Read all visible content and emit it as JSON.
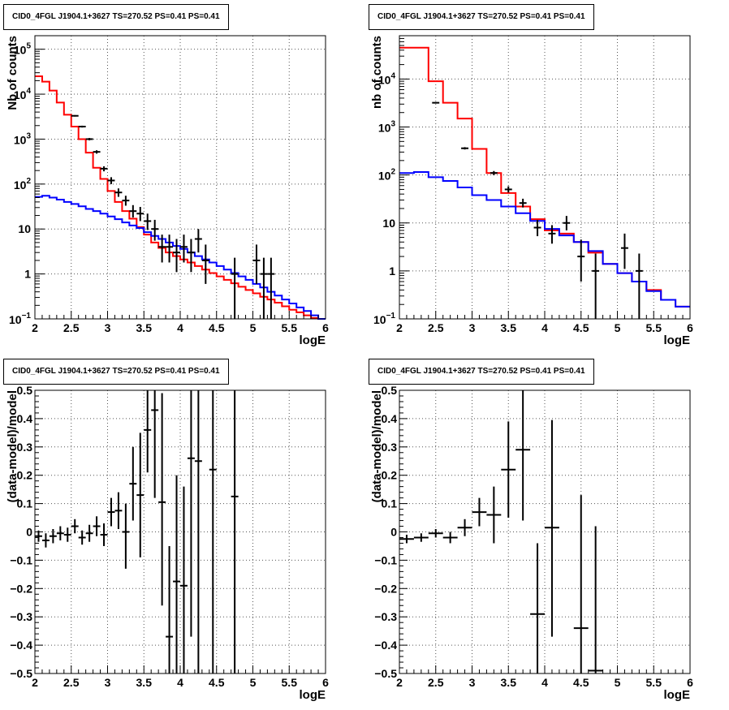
{
  "chart_data": [
    {
      "type": "line",
      "title": "CID0_4FGL J1904.1+3627 TS=270.52 PS=0.41 PS=0.41",
      "xlabel": "logE",
      "ylabel": "Nb of counts",
      "log_y": true,
      "xlim": [
        2,
        6
      ],
      "ylim": [
        0.1,
        200000
      ],
      "grid": true,
      "x_ticks": [
        "2",
        "2.5",
        "3",
        "3.5",
        "4",
        "4.5",
        "5",
        "5.5",
        "6"
      ],
      "y_ticks": [
        {
          "v": 0.1,
          "b": "10",
          "e": "−1"
        },
        {
          "v": 1,
          "b": "1",
          "e": ""
        },
        {
          "v": 10,
          "b": "10",
          "e": ""
        },
        {
          "v": 100,
          "b": "10",
          "e": "2"
        },
        {
          "v": 1000,
          "b": "10",
          "e": "3"
        },
        {
          "v": 10000,
          "b": "10",
          "e": "4"
        },
        {
          "v": 100000,
          "b": "10",
          "e": "5"
        }
      ],
      "bin_edges": [
        2.0,
        2.1,
        2.2,
        2.3,
        2.4,
        2.5,
        2.6,
        2.7,
        2.8,
        2.9,
        3.0,
        3.1,
        3.2,
        3.3,
        3.4,
        3.5,
        3.6,
        3.7,
        3.8,
        3.9,
        4.0,
        4.1,
        4.2,
        4.3,
        4.4,
        4.5,
        4.6,
        4.7,
        4.8,
        4.9,
        5.0,
        5.1,
        5.2,
        5.3,
        5.4,
        5.5,
        5.6,
        5.7,
        5.8,
        5.9,
        6.0
      ],
      "series": [
        {
          "name": "",
          "kind": "step",
          "color": "#ff0000",
          "values": [
            25000,
            19000,
            12000,
            6500,
            3500,
            1900,
            1000,
            500,
            230,
            130,
            70,
            40,
            25,
            17,
            11,
            7.5,
            5,
            3.8,
            3,
            2.5,
            2.1,
            1.8,
            1.5,
            1.25,
            1.05,
            0.88,
            0.74,
            0.62,
            0.52,
            0.44,
            0.37,
            0.31,
            0.27,
            0.23,
            0.19,
            0.16,
            0.14,
            0.12,
            0.105,
            0.09
          ]
        },
        {
          "name": "",
          "kind": "step",
          "color": "#0000ff",
          "values": [
            52,
            55,
            50,
            45,
            40,
            36,
            32,
            28,
            25,
            22,
            19,
            16.5,
            14,
            12,
            10.5,
            8.5,
            7,
            6,
            5,
            4.2,
            3.6,
            3.0,
            2.5,
            2.1,
            1.8,
            1.5,
            1.25,
            1.05,
            0.88,
            0.74,
            0.6,
            0.5,
            0.4,
            0.33,
            0.27,
            0.22,
            0.18,
            0.15,
            0.12,
            0.1
          ]
        },
        {
          "name": "",
          "kind": "errorbar",
          "color": "#000000",
          "points": [
            {
              "x": 2.55,
              "y": 3300,
              "lo": 3180,
              "hi": 3420
            },
            {
              "x": 2.65,
              "y": 1900,
              "lo": 1810,
              "hi": 1990
            },
            {
              "x": 2.75,
              "y": 1000,
              "lo": 940,
              "hi": 1060
            },
            {
              "x": 2.85,
              "y": 520,
              "lo": 475,
              "hi": 565
            },
            {
              "x": 2.95,
              "y": 220,
              "lo": 192,
              "hi": 248
            },
            {
              "x": 3.05,
              "y": 120,
              "lo": 100,
              "hi": 142
            },
            {
              "x": 3.15,
              "y": 65,
              "lo": 52,
              "hi": 80
            },
            {
              "x": 3.25,
              "y": 43,
              "lo": 33,
              "hi": 55
            },
            {
              "x": 3.35,
              "y": 25,
              "lo": 18,
              "hi": 34
            },
            {
              "x": 3.45,
              "y": 22,
              "lo": 15,
              "hi": 31
            },
            {
              "x": 3.55,
              "y": 15,
              "lo": 9.5,
              "hi": 22
            },
            {
              "x": 3.65,
              "y": 10,
              "lo": 5.5,
              "hi": 16
            },
            {
              "x": 3.75,
              "y": 4,
              "lo": 1.8,
              "hi": 7.5
            },
            {
              "x": 3.85,
              "y": 4,
              "lo": 1.8,
              "hi": 7.5
            },
            {
              "x": 3.95,
              "y": 3,
              "lo": 1.1,
              "hi": 6
            },
            {
              "x": 4.05,
              "y": 4,
              "lo": 1.8,
              "hi": 7.5
            },
            {
              "x": 4.15,
              "y": 3,
              "lo": 1.1,
              "hi": 6
            },
            {
              "x": 4.25,
              "y": 6,
              "lo": 3,
              "hi": 10
            },
            {
              "x": 4.35,
              "y": 2,
              "lo": 0.6,
              "hi": 4.5
            },
            {
              "x": 4.75,
              "y": 1,
              "lo": 0.1,
              "hi": 2.3
            },
            {
              "x": 5.05,
              "y": 2,
              "lo": 0.6,
              "hi": 4.5
            },
            {
              "x": 5.15,
              "y": 1,
              "lo": 0.1,
              "hi": 2.3
            },
            {
              "x": 5.25,
              "y": 1,
              "lo": 0.1,
              "hi": 2.3
            }
          ]
        }
      ]
    },
    {
      "type": "line",
      "title": "CID0_4FGL J1904.1+3627 TS=270.52 PS=0.41 PS=0.41",
      "xlabel": "logE",
      "ylabel": "nb of counts",
      "log_y": true,
      "xlim": [
        2,
        6
      ],
      "ylim": [
        0.1,
        80000
      ],
      "grid": true,
      "x_ticks": [
        "2",
        "2.5",
        "3",
        "3.5",
        "4",
        "4.5",
        "5",
        "5.5",
        "6"
      ],
      "y_ticks": [
        {
          "v": 0.1,
          "b": "10",
          "e": "−1"
        },
        {
          "v": 1,
          "b": "1",
          "e": ""
        },
        {
          "v": 10,
          "b": "10",
          "e": ""
        },
        {
          "v": 100,
          "b": "10",
          "e": "2"
        },
        {
          "v": 1000,
          "b": "10",
          "e": "3"
        },
        {
          "v": 10000,
          "b": "10",
          "e": "4"
        }
      ],
      "bin_edges": [
        2.0,
        2.2,
        2.4,
        2.6,
        2.8,
        3.0,
        3.2,
        3.4,
        3.6,
        3.8,
        4.0,
        4.2,
        4.4,
        4.6,
        4.8,
        5.0,
        5.2,
        5.4,
        5.6,
        5.8,
        6.0
      ],
      "series": [
        {
          "name": "",
          "kind": "step",
          "color": "#ff0000",
          "values": [
            45000,
            45000,
            9000,
            3200,
            1500,
            350,
            110,
            42,
            22,
            12,
            7,
            6,
            4,
            2.4,
            1.4,
            0.9,
            0.6,
            0.4,
            0.25,
            0.18
          ]
        },
        {
          "name": "",
          "kind": "step",
          "color": "#0000ff",
          "values": [
            110,
            115,
            90,
            75,
            55,
            38,
            30,
            22,
            16,
            11,
            7.5,
            5.5,
            4,
            2.6,
            1.4,
            0.9,
            0.6,
            0.38,
            0.25,
            0.18
          ]
        },
        {
          "name": "",
          "kind": "errorbar",
          "color": "#000000",
          "points": [
            {
              "x": 2.5,
              "y": 3200,
              "lo": 3140,
              "hi": 3260
            },
            {
              "x": 2.9,
              "y": 360,
              "lo": 340,
              "hi": 380
            },
            {
              "x": 3.3,
              "y": 110,
              "lo": 99,
              "hi": 121
            },
            {
              "x": 3.5,
              "y": 50,
              "lo": 43,
              "hi": 58
            },
            {
              "x": 3.7,
              "y": 26,
              "lo": 21,
              "hi": 32
            },
            {
              "x": 3.9,
              "y": 8,
              "lo": 5.3,
              "hi": 11.5
            },
            {
              "x": 4.1,
              "y": 6,
              "lo": 3.7,
              "hi": 9
            },
            {
              "x": 4.3,
              "y": 10,
              "lo": 7,
              "hi": 14
            },
            {
              "x": 4.5,
              "y": 2,
              "lo": 0.6,
              "hi": 4.5
            },
            {
              "x": 4.7,
              "y": 1,
              "lo": 0.1,
              "hi": 2.3
            },
            {
              "x": 5.1,
              "y": 3,
              "lo": 1.1,
              "hi": 6
            },
            {
              "x": 5.3,
              "y": 1,
              "lo": 0.1,
              "hi": 2.3
            }
          ]
        }
      ]
    },
    {
      "type": "scatter",
      "title": "CID0_4FGL J1904.1+3627 TS=270.52 PS=0.41 PS=0.41",
      "xlabel": "logE",
      "ylabel": "(data-model)/model",
      "log_y": false,
      "xlim": [
        2,
        6
      ],
      "ylim": [
        -0.5,
        0.5
      ],
      "grid": true,
      "x_ticks": [
        "2",
        "2.5",
        "3",
        "3.5",
        "4",
        "4.5",
        "5",
        "5.5",
        "6"
      ],
      "y_ticks": [
        {
          "v": -0.5,
          "b": "−0.5"
        },
        {
          "v": -0.4,
          "b": "−0.4"
        },
        {
          "v": -0.3,
          "b": "−0.3"
        },
        {
          "v": -0.2,
          "b": "−0.2"
        },
        {
          "v": -0.1,
          "b": "−0.1"
        },
        {
          "v": 0,
          "b": "0"
        },
        {
          "v": 0.1,
          "b": "0.1"
        },
        {
          "v": 0.2,
          "b": "0.2"
        },
        {
          "v": 0.3,
          "b": "0.3"
        },
        {
          "v": 0.4,
          "b": "0.4"
        },
        {
          "v": 0.5,
          "b": "0.5"
        }
      ],
      "series": [
        {
          "name": "",
          "kind": "errorbar",
          "color": "#000000",
          "half_width": 0.05,
          "points": [
            {
              "x": 2.05,
              "y": -0.015,
              "lo": -0.035,
              "hi": 0.005
            },
            {
              "x": 2.15,
              "y": -0.03,
              "lo": -0.055,
              "hi": -0.005
            },
            {
              "x": 2.25,
              "y": -0.015,
              "lo": -0.04,
              "hi": 0.01
            },
            {
              "x": 2.35,
              "y": -0.005,
              "lo": -0.03,
              "hi": 0.02
            },
            {
              "x": 2.45,
              "y": -0.01,
              "lo": -0.035,
              "hi": 0.015
            },
            {
              "x": 2.55,
              "y": 0.02,
              "lo": -0.005,
              "hi": 0.045
            },
            {
              "x": 2.65,
              "y": -0.02,
              "lo": -0.045,
              "hi": 0.005
            },
            {
              "x": 2.75,
              "y": -0.005,
              "lo": -0.035,
              "hi": 0.025
            },
            {
              "x": 2.85,
              "y": 0.02,
              "lo": -0.015,
              "hi": 0.055
            },
            {
              "x": 2.95,
              "y": -0.01,
              "lo": -0.05,
              "hi": 0.03
            },
            {
              "x": 3.05,
              "y": 0.07,
              "lo": 0.02,
              "hi": 0.12
            },
            {
              "x": 3.15,
              "y": 0.075,
              "lo": 0.01,
              "hi": 0.14
            },
            {
              "x": 3.25,
              "y": 0.0,
              "lo": -0.13,
              "hi": 0.1
            },
            {
              "x": 3.35,
              "y": 0.17,
              "lo": 0.04,
              "hi": 0.3
            },
            {
              "x": 3.45,
              "y": 0.13,
              "lo": -0.09,
              "hi": 0.35
            },
            {
              "x": 3.55,
              "y": 0.36,
              "lo": 0.21,
              "hi": 0.5
            },
            {
              "x": 3.65,
              "y": 0.43,
              "lo": 0.12,
              "hi": 0.5
            },
            {
              "x": 3.75,
              "y": 0.105,
              "lo": -0.26,
              "hi": 0.49
            },
            {
              "x": 3.85,
              "y": -0.37,
              "lo": -0.5,
              "hi": -0.05
            },
            {
              "x": 3.95,
              "y": -0.175,
              "lo": -0.5,
              "hi": 0.2
            },
            {
              "x": 4.05,
              "y": -0.19,
              "lo": -0.5,
              "hi": 0.16
            },
            {
              "x": 4.15,
              "y": 0.26,
              "lo": -0.37,
              "hi": 0.5
            },
            {
              "x": 4.25,
              "y": 0.25,
              "lo": -0.5,
              "hi": 0.5
            },
            {
              "x": 4.45,
              "y": 0.22,
              "lo": -0.5,
              "hi": 0.5
            },
            {
              "x": 4.75,
              "y": 0.125,
              "lo": -0.5,
              "hi": 0.5
            }
          ]
        }
      ]
    },
    {
      "type": "scatter",
      "title": "CID0_4FGL J1904.1+3627 TS=270.52 PS=0.41 PS=0.41",
      "xlabel": "logE",
      "ylabel": "(data-model)/model",
      "log_y": false,
      "xlim": [
        2,
        6
      ],
      "ylim": [
        -0.5,
        0.5
      ],
      "grid": true,
      "x_ticks": [
        "2",
        "2.5",
        "3",
        "3.5",
        "4",
        "4.5",
        "5",
        "5.5",
        "6"
      ],
      "y_ticks": [
        {
          "v": -0.5,
          "b": "−0.5"
        },
        {
          "v": -0.4,
          "b": "−0.4"
        },
        {
          "v": -0.3,
          "b": "−0.3"
        },
        {
          "v": -0.2,
          "b": "−0.2"
        },
        {
          "v": -0.1,
          "b": "−0.1"
        },
        {
          "v": 0,
          "b": "0"
        },
        {
          "v": 0.1,
          "b": "0.1"
        },
        {
          "v": 0.2,
          "b": "0.2"
        },
        {
          "v": 0.3,
          "b": "0.3"
        },
        {
          "v": 0.4,
          "b": "0.4"
        },
        {
          "v": 0.5,
          "b": "0.5"
        }
      ],
      "series": [
        {
          "name": "",
          "kind": "errorbar",
          "color": "#000000",
          "half_width": 0.1,
          "points": [
            {
              "x": 2.1,
              "y": -0.025,
              "lo": -0.04,
              "hi": -0.01
            },
            {
              "x": 2.3,
              "y": -0.02,
              "lo": -0.035,
              "hi": -0.005
            },
            {
              "x": 2.5,
              "y": -0.005,
              "lo": -0.02,
              "hi": 0.01
            },
            {
              "x": 2.7,
              "y": -0.02,
              "lo": -0.04,
              "hi": 0.0
            },
            {
              "x": 2.9,
              "y": 0.015,
              "lo": -0.015,
              "hi": 0.045
            },
            {
              "x": 3.1,
              "y": 0.07,
              "lo": 0.02,
              "hi": 0.12
            },
            {
              "x": 3.3,
              "y": 0.06,
              "lo": -0.04,
              "hi": 0.16
            },
            {
              "x": 3.5,
              "y": 0.22,
              "lo": 0.05,
              "hi": 0.39
            },
            {
              "x": 3.7,
              "y": 0.29,
              "lo": 0.04,
              "hi": 0.5
            },
            {
              "x": 3.9,
              "y": -0.29,
              "lo": -0.5,
              "hi": -0.04
            },
            {
              "x": 4.1,
              "y": 0.015,
              "lo": -0.37,
              "hi": 0.395
            },
            {
              "x": 4.5,
              "y": -0.34,
              "lo": -0.5,
              "hi": 0.13
            },
            {
              "x": 4.7,
              "y": -0.49,
              "lo": -0.5,
              "hi": 0.02
            }
          ]
        }
      ]
    }
  ]
}
